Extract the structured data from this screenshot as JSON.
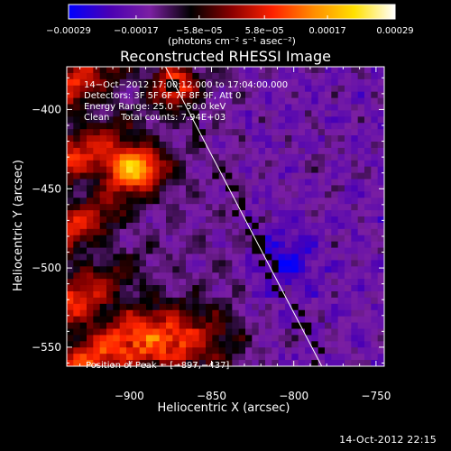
{
  "footer_timestamp": "14-Oct-2012 22:15",
  "colors": {
    "background": "#000000",
    "foreground": "#ffffff",
    "colormap": [
      "#0000ff",
      "#4a00b4",
      "#7b1fa2",
      "#000000",
      "#8b0000",
      "#ff2200",
      "#ff8c00",
      "#ffe000",
      "#ffffff"
    ]
  },
  "chart_data": {
    "type": "heatmap",
    "title": "Reconstructed RHESSI Image",
    "xlabel": "Heliocentric X (arcsec)",
    "ylabel": "Heliocentric Y (arcsec)",
    "xlim": [
      -938,
      -745
    ],
    "ylim": [
      -562,
      -373
    ],
    "x_ticks": [
      -900,
      -850,
      -800,
      -750
    ],
    "x_tick_labels": [
      "−900",
      "−850",
      "−800",
      "−750"
    ],
    "y_ticks": [
      -550,
      -500,
      -450,
      -400
    ],
    "y_tick_labels": [
      "−550",
      "−500",
      "−450",
      "−400"
    ],
    "colorbar": {
      "range": [
        -0.00029,
        0.00029
      ],
      "ticks": [
        -0.00029,
        -0.00017,
        -5.8e-05,
        5.8e-05,
        0.00017,
        0.00029
      ],
      "tick_labels": [
        "−0.00029",
        "−0.00017",
        "−5.8e−05",
        "5.8e−05",
        "0.00017",
        "0.00029"
      ],
      "unit_label": "(photons cm⁻² s⁻¹ asec⁻²)"
    },
    "annotations": [
      "14−Oct−2012 17:00:12.000 to 17:04:00.000",
      "Detectors: 3F 5F 6F 7F 8F 9F, Att 0",
      "Energy Range: 25.0 − 50.0 keV",
      "Clean    Total counts: 7.94E+03"
    ],
    "peak_label": "Position of Peak = [−897,−437]",
    "peak": [
      -897,
      -437
    ],
    "limb_line": [
      [
        -878,
        -373
      ],
      [
        -783,
        -562
      ]
    ]
  }
}
